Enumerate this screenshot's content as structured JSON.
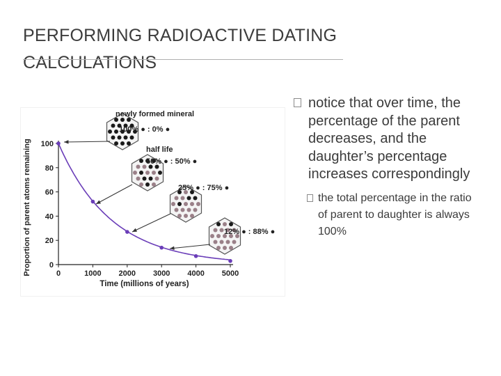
{
  "slide": {
    "title_lines": [
      "PERFORMING RADIOACTIVE DATING",
      "CALCULATIONS"
    ]
  },
  "bullets": {
    "main": "notice that over time, the percentage of the parent decreases, and the daughter’s percentage increases correspondingly",
    "sub": "the total percentage in the ratio of parent to daughter is always 100%"
  },
  "colors": {
    "curve": "#6a3db8",
    "parent_atom": "#1a1a1a",
    "daughter_atom": "#9a8088"
  },
  "chart_data": {
    "type": "line",
    "xlabel": "Time (millions of years)",
    "ylabel": "Proportion of parent atoms remaining",
    "xlim": [
      0,
      5000
    ],
    "ylim": [
      0,
      100
    ],
    "xticks": [
      "0",
      "1000",
      "2000",
      "3000",
      "4000",
      "5000"
    ],
    "yticks": [
      "0",
      "20",
      "40",
      "60",
      "80",
      "100"
    ],
    "grid": false,
    "x": [
      0,
      1000,
      2000,
      3000,
      4000,
      5000
    ],
    "y": [
      100,
      52,
      27,
      14,
      7,
      3
    ],
    "annotations": [
      {
        "label": "newly formed mineral",
        "ratio": "100% ● : 0% ●",
        "parent_fraction": 1.0
      },
      {
        "label": "half life",
        "ratio": "50% ● : 50% ●",
        "parent_fraction": 0.5
      },
      {
        "label": "",
        "ratio": "25% ● : 75% ●",
        "parent_fraction": 0.25
      },
      {
        "label": "",
        "ratio": "12% ● : 88% ●",
        "parent_fraction": 0.12
      }
    ]
  }
}
